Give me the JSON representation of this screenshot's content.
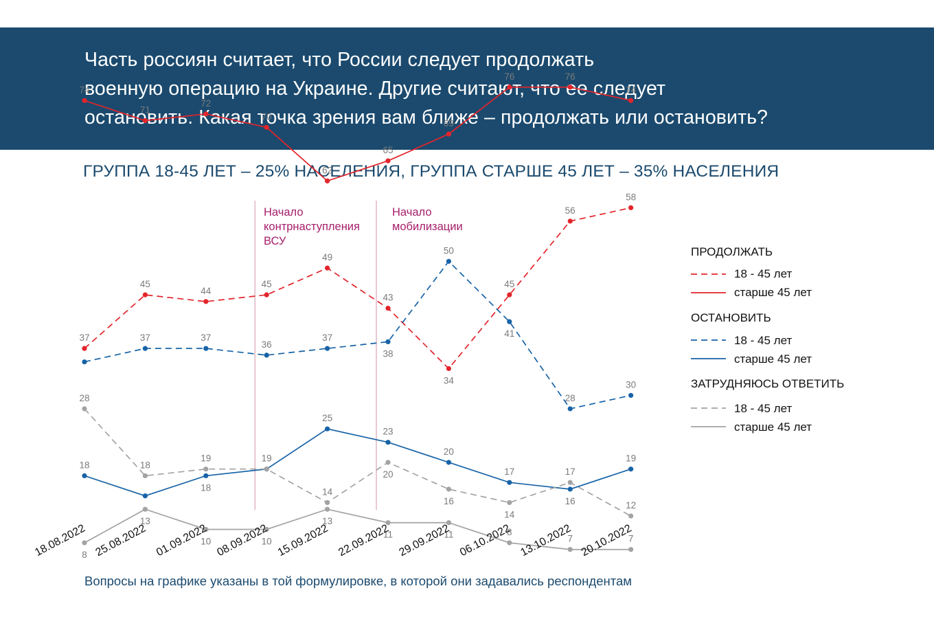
{
  "question": {
    "lines": [
      "Часть россиян считает, что России следует продолжать",
      "военную операцию на Украине. Другие считают, что ее следует",
      "остановить. Какая точка зрения вам ближе – продолжать или остановить?"
    ]
  },
  "subtitle": "ГРУППА 18-45 ЛЕТ – 25% НАСЕЛЕНИЯ, ГРУППА СТАРШЕ 45 ЛЕТ  – 35% НАСЕЛЕНИЯ",
  "footnote": "Вопросы на графике указаны в той формулировке, в которой они задавались респондентам",
  "annotations": [
    {
      "label": "Начало контрнаступления ВСУ",
      "lines": [
        "Начало",
        "контрнаступления",
        "ВСУ"
      ],
      "at": "08.09.2022"
    },
    {
      "label": "Начало мобилизации",
      "lines": [
        "Начало",
        "мобилизации"
      ],
      "at": "22.09.2022"
    }
  ],
  "legend": {
    "groups": [
      {
        "title": "ПРОДОЛЖАТЬ",
        "items": [
          "18 - 45 лет",
          "старше 45 лет"
        ]
      },
      {
        "title": "ОСТАНОВИТЬ",
        "items": [
          "18 - 45 лет",
          "старше 45 лет"
        ]
      },
      {
        "title": "ЗАТРУДНЯЮСЬ ОТВЕТИТЬ",
        "items": [
          "18 - 45 лет",
          "старше 45 лет"
        ]
      }
    ]
  },
  "colors": {
    "banner": "#1b4a6e",
    "continue": "#e3242b",
    "stop": "#1763a7",
    "undecided": "#a3a3a3",
    "annotation": "#a61e6a",
    "label": "#7a7a7a"
  },
  "chart_data": {
    "type": "line",
    "x": [
      "18.08.2022",
      "25.08.2022",
      "01.09.2022",
      "08.09.2022",
      "15.09.2022",
      "22.09.2022",
      "29.09.2022",
      "06.10.2022",
      "13.10.2022",
      "20.10.2022"
    ],
    "ylim": [
      0,
      100
    ],
    "grid": false,
    "legend_position": "right",
    "series": [
      {
        "group": "ПРОДОЛЖАТЬ",
        "name": "18 - 45 лет",
        "style": "dashed",
        "color": "#e3242b",
        "values": [
          37,
          45,
          44,
          45,
          49,
          43,
          34,
          45,
          56,
          58
        ],
        "labels": [
          "above",
          "above",
          "above",
          "above",
          "above",
          "above",
          "below",
          "above",
          "above",
          "above"
        ]
      },
      {
        "group": "ПРОДОЛЖАТЬ",
        "name": "старше 45 лет",
        "style": "solid",
        "color": "#e3242b",
        "values": [
          74,
          71,
          72,
          70,
          62,
          65,
          69,
          76,
          76,
          74
        ],
        "labels": [
          "above",
          "above",
          "above",
          "above",
          "above",
          "above",
          "above",
          "above",
          "above",
          "above"
        ]
      },
      {
        "group": "ОСТАНОВИТЬ",
        "name": "18 - 45 лет",
        "style": "dashed",
        "color": "#1763a7",
        "values": [
          35,
          37,
          37,
          36,
          37,
          38,
          50,
          41,
          28,
          30
        ],
        "labels": [
          "none",
          "above",
          "above",
          "above",
          "above",
          "below",
          "above",
          "below",
          "above",
          "above"
        ]
      },
      {
        "group": "ОСТАНОВИТЬ",
        "name": "старше 45 лет",
        "style": "solid",
        "color": "#1763a7",
        "values": [
          18,
          15,
          18,
          19,
          25,
          23,
          20,
          17,
          16,
          19
        ],
        "labels": [
          "above",
          "none",
          "below",
          "above",
          "above",
          "above",
          "above",
          "above",
          "below",
          "above"
        ]
      },
      {
        "group": "ЗАТРУДНЯЮСЬ ОТВЕТИТЬ",
        "name": "18 - 45 лет",
        "style": "dashed",
        "color": "#a3a3a3",
        "values": [
          28,
          18,
          19,
          19,
          14,
          20,
          16,
          14,
          17,
          12
        ],
        "labels": [
          "above",
          "above",
          "above",
          "none",
          "above",
          "below",
          "below",
          "below",
          "above",
          "above"
        ]
      },
      {
        "group": "ЗАТРУДНЯЮСЬ ОТВЕТИТЬ",
        "name": "старше 45 лет",
        "style": "solid",
        "color": "#a3a3a3",
        "values": [
          8,
          13,
          10,
          10,
          13,
          11,
          11,
          8,
          7,
          7
        ],
        "labels": [
          "below",
          "below",
          "below",
          "below",
          "below",
          "below",
          "below",
          "above",
          "above",
          "above"
        ]
      }
    ]
  }
}
